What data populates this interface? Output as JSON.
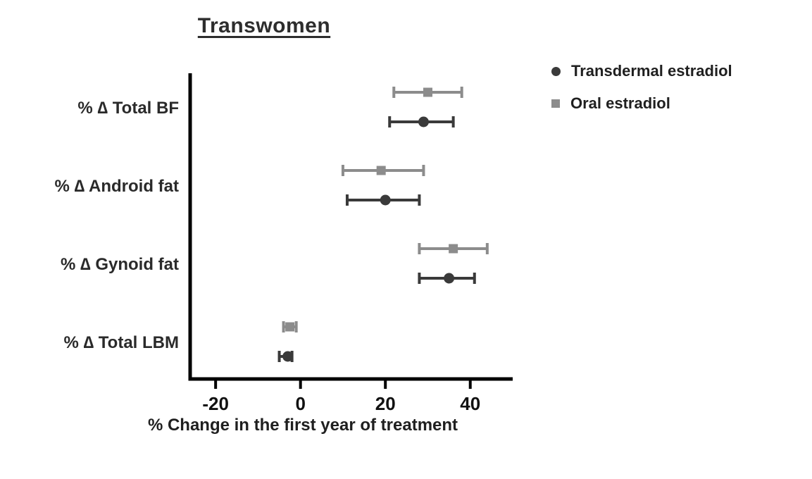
{
  "chart_data": {
    "type": "scatter",
    "title": "Transwomen",
    "xlabel": "% Change in the first year of treatment",
    "categories": [
      "% ∆ Total BF",
      "% ∆ Android fat",
      "% ∆ Gynoid fat",
      "% ∆ Total LBM"
    ],
    "xticks": [
      -20,
      0,
      20,
      40
    ],
    "xlim": [
      -26,
      50
    ],
    "grid": false,
    "legend_position": "top-right",
    "series": [
      {
        "name": "Oral estradiol",
        "marker": "square",
        "color": "#8c8c8c",
        "values": [
          30,
          19,
          36,
          -2.5
        ],
        "ci_low": [
          22,
          10,
          28,
          -4
        ],
        "ci_high": [
          38,
          29,
          44,
          -1
        ]
      },
      {
        "name": "Transdermal estradiol",
        "marker": "circle",
        "color": "#3a3a3a",
        "values": [
          29,
          20,
          35,
          -3
        ],
        "ci_low": [
          21,
          11,
          28,
          -5
        ],
        "ci_high": [
          36,
          28,
          41,
          -2
        ]
      }
    ]
  },
  "legend": [
    {
      "label": "Transdermal estradiol",
      "marker": "circle",
      "color": "#3a3a3a"
    },
    {
      "label": "Oral estradiol",
      "marker": "square",
      "color": "#8c8c8c"
    }
  ],
  "axis_color": "#000000"
}
